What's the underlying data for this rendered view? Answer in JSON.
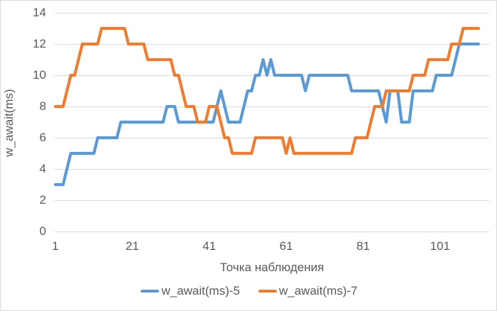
{
  "chart_data": {
    "type": "line",
    "title": "",
    "xlabel": "Точка наблюдения",
    "ylabel": "w_await(ms)",
    "x_range": [
      1,
      111
    ],
    "x_label_note": "observation point index, sequential 1..111",
    "xticks": [
      1,
      21,
      41,
      61,
      81,
      101
    ],
    "yticks": [
      0,
      2,
      4,
      6,
      8,
      10,
      12,
      14
    ],
    "ylim": [
      0,
      14
    ],
    "grid": "horizontal",
    "legend_position": "bottom",
    "series": [
      {
        "name": "w_await(ms)-5",
        "color": "#5B9BD5",
        "values": [
          3,
          3,
          3,
          4,
          5,
          5,
          5,
          5,
          5,
          5,
          5,
          6,
          6,
          6,
          6,
          6,
          6,
          7,
          7,
          7,
          7,
          7,
          7,
          7,
          7,
          7,
          7,
          7,
          7,
          8,
          8,
          8,
          7,
          7,
          7,
          7,
          7,
          7,
          7,
          7,
          7,
          7,
          8,
          9,
          8,
          7,
          7,
          7,
          7,
          8,
          9,
          9,
          10,
          10,
          11,
          10,
          11,
          10,
          10,
          10,
          10,
          10,
          10,
          10,
          10,
          9,
          10,
          10,
          10,
          10,
          10,
          10,
          10,
          10,
          10,
          10,
          10,
          9,
          9,
          9,
          9,
          9,
          9,
          9,
          9,
          8,
          7,
          9,
          9,
          9,
          7,
          7,
          7,
          9,
          9,
          9,
          9,
          9,
          9,
          10,
          10,
          10,
          10,
          10,
          11,
          12,
          12,
          12,
          12,
          12,
          12
        ]
      },
      {
        "name": "w_await(ms)-7",
        "color": "#ED7D31",
        "values": [
          8,
          8,
          8,
          9,
          10,
          10,
          11,
          12,
          12,
          12,
          12,
          12,
          13,
          13,
          13,
          13,
          13,
          13,
          13,
          12,
          12,
          12,
          12,
          12,
          11,
          11,
          11,
          11,
          11,
          11,
          11,
          10,
          10,
          9,
          8,
          8,
          8,
          7,
          7,
          7,
          8,
          8,
          8,
          7,
          6,
          6,
          5,
          5,
          5,
          5,
          5,
          5,
          6,
          6,
          6,
          6,
          6,
          6,
          6,
          6,
          5,
          6,
          5,
          5,
          5,
          5,
          5,
          5,
          5,
          5,
          5,
          5,
          5,
          5,
          5,
          5,
          5,
          5,
          6,
          6,
          6,
          6,
          7,
          8,
          8,
          8,
          9,
          9,
          9,
          9,
          9,
          9,
          9,
          10,
          10,
          10,
          10,
          11,
          11,
          11,
          11,
          11,
          11,
          12,
          12,
          12,
          13,
          13,
          13,
          13,
          13
        ]
      }
    ]
  },
  "style": {
    "grid_color": "#D9D9D9",
    "text_color": "#595959",
    "border_color": "#D9D9D9",
    "background": "#FFFFFF",
    "line_width": 4.2
  }
}
